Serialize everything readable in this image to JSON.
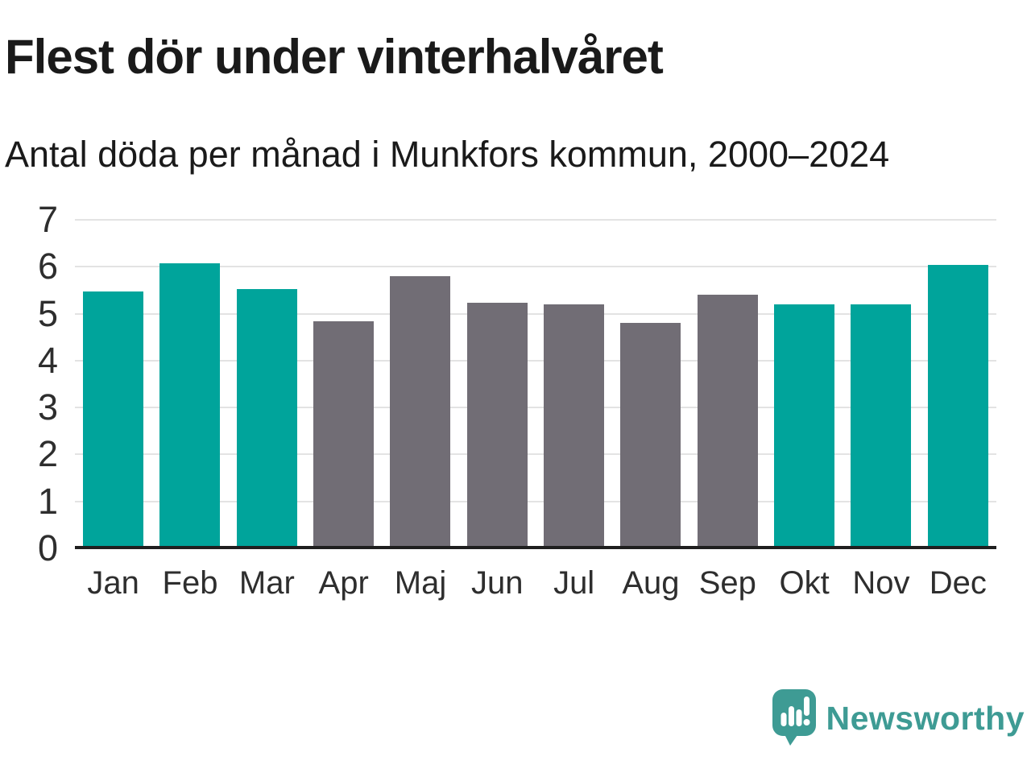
{
  "header": {
    "title": "Flest dör under vinterhalvåret",
    "subtitle": "Antal döda per månad i Munkfors kommun, 2000–2024"
  },
  "chart_data": {
    "type": "bar",
    "title": "Flest dör under vinterhalvåret",
    "subtitle": "Antal döda per månad i Munkfors kommun, 2000–2024",
    "categories": [
      "Jan",
      "Feb",
      "Mar",
      "Apr",
      "Maj",
      "Jun",
      "Jul",
      "Aug",
      "Sep",
      "Okt",
      "Nov",
      "Dec"
    ],
    "values": [
      5.48,
      6.08,
      5.52,
      4.84,
      5.8,
      5.24,
      5.2,
      4.8,
      5.4,
      5.2,
      5.2,
      6.04
    ],
    "bar_color_keys": [
      "teal",
      "teal",
      "teal",
      "gray",
      "gray",
      "gray",
      "gray",
      "gray",
      "gray",
      "teal",
      "teal",
      "teal"
    ],
    "xlabel": "",
    "ylabel": "",
    "ylim": [
      0,
      7
    ],
    "yticks": [
      0,
      1,
      2,
      3,
      4,
      5,
      6,
      7
    ],
    "grid": true,
    "legend": false
  },
  "footer": {
    "brand": "Newsworthy"
  },
  "theme": {
    "bar_teal": "#00A49B",
    "bar_gray": "#716D75",
    "logo_teal": "#3E9B94",
    "text_dark": "#1A1A1A",
    "axis_text": "#2E2E2E",
    "gridline": "#E3E3E3",
    "axis_line": "#1F1F1F",
    "background": "#FFFFFF"
  }
}
